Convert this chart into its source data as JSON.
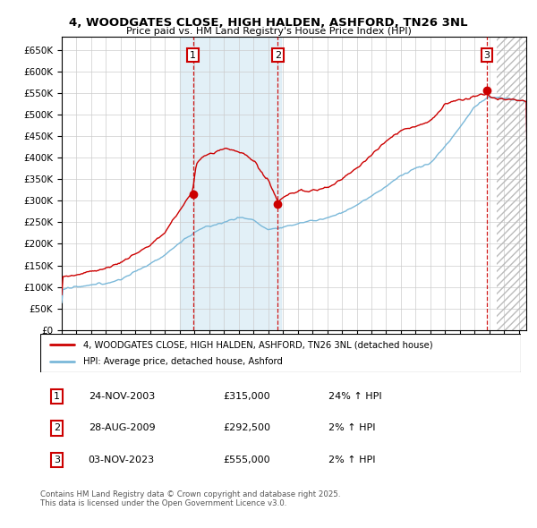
{
  "title": "4, WOODGATES CLOSE, HIGH HALDEN, ASHFORD, TN26 3NL",
  "subtitle": "Price paid vs. HM Land Registry's House Price Index (HPI)",
  "ytick_values": [
    0,
    50000,
    100000,
    150000,
    200000,
    250000,
    300000,
    350000,
    400000,
    450000,
    500000,
    550000,
    600000,
    650000
  ],
  "xlim_start": 1995.0,
  "xlim_end": 2026.5,
  "ylim_min": 0,
  "ylim_max": 680000,
  "sale_dates": [
    2003.9,
    2009.65,
    2023.84
  ],
  "sale_prices": [
    315000,
    292500,
    555000
  ],
  "sale_labels": [
    "1",
    "2",
    "3"
  ],
  "hpi_color": "#7ab8d9",
  "price_color": "#cc0000",
  "background_color": "#ffffff",
  "grid_color": "#cccccc",
  "shade_color": "#d6eaf5",
  "legend_label_price": "4, WOODGATES CLOSE, HIGH HALDEN, ASHFORD, TN26 3NL (detached house)",
  "legend_label_hpi": "HPI: Average price, detached house, Ashford",
  "table_data": [
    [
      "1",
      "24-NOV-2003",
      "£315,000",
      "24% ↑ HPI"
    ],
    [
      "2",
      "28-AUG-2009",
      "£292,500",
      "2% ↑ HPI"
    ],
    [
      "3",
      "03-NOV-2023",
      "£555,000",
      "2% ↑ HPI"
    ]
  ],
  "footnote": "Contains HM Land Registry data © Crown copyright and database right 2025.\nThis data is licensed under the Open Government Licence v3.0.",
  "shade_start": 2003.0,
  "shade_end": 2009.9,
  "hatch_start": 2024.5
}
